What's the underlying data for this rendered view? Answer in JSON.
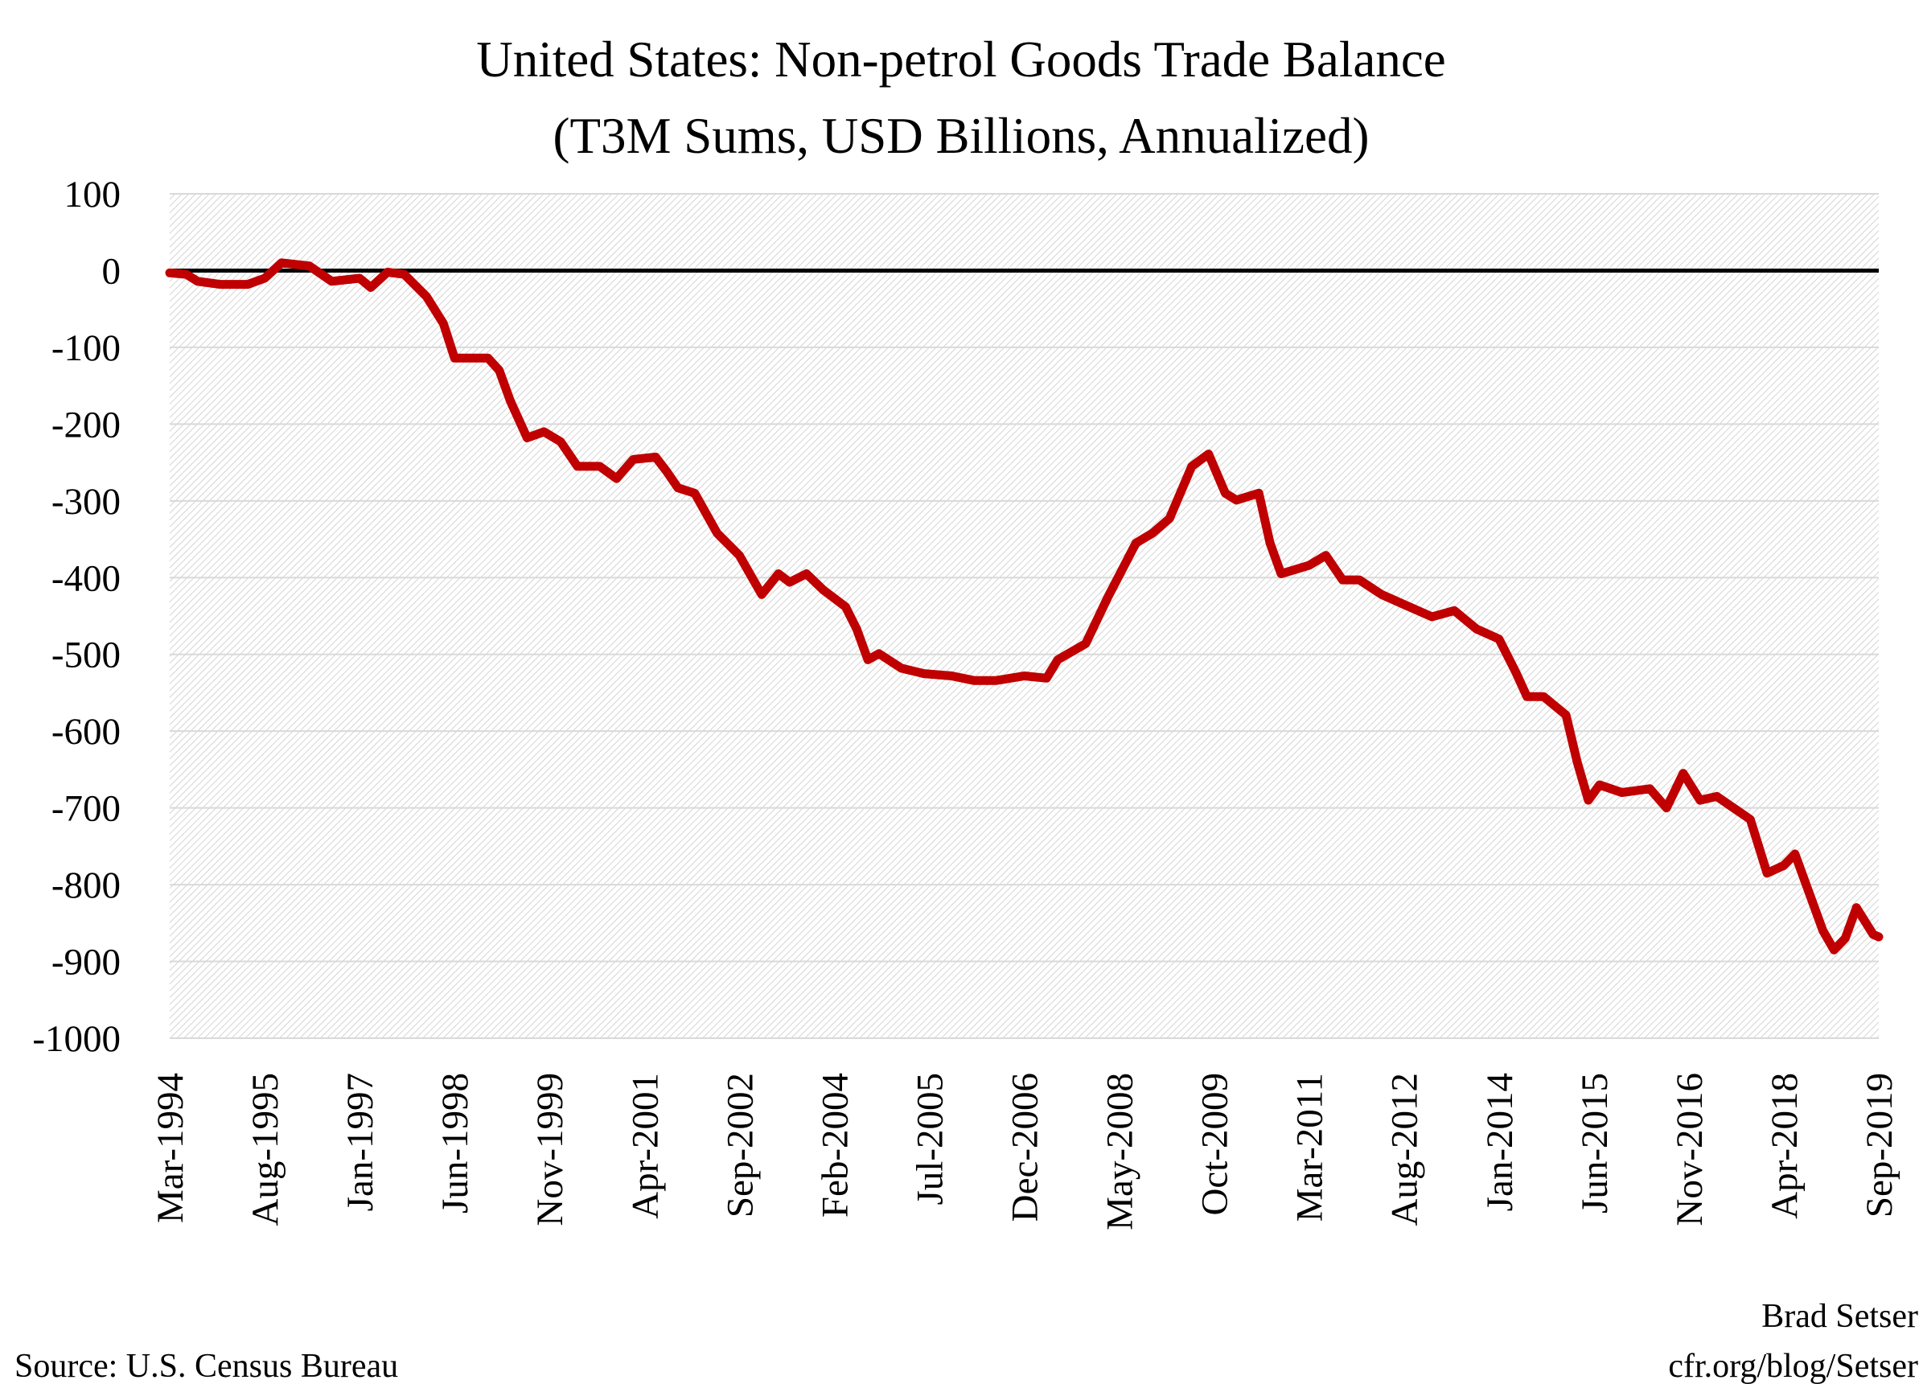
{
  "chart_data": {
    "type": "line",
    "title": "United States: Non-petrol Goods Trade Balance",
    "subtitle": "(T3M Sums, USD Billions, Annualized)",
    "xlabel": "",
    "ylabel": "",
    "ylim": [
      -1000,
      100
    ],
    "yticks": [
      "100",
      "0",
      "-100",
      "-200",
      "-300",
      "-400",
      "-500",
      "-600",
      "-700",
      "-800",
      "-900",
      "-1000"
    ],
    "xlim": [
      "1994-03",
      "2019-09"
    ],
    "xticks": [
      "Mar-1994",
      "Aug-1995",
      "Jan-1997",
      "Jun-1998",
      "Nov-1999",
      "Apr-2001",
      "Sep-2002",
      "Feb-2004",
      "Jul-2005",
      "Dec-2006",
      "May-2008",
      "Oct-2009",
      "Mar-2011",
      "Aug-2012",
      "Jan-2014",
      "Jun-2015",
      "Nov-2016",
      "Apr-2018",
      "Sep-2019"
    ],
    "grid": true,
    "zero_line": true,
    "legend": "none",
    "series": [
      {
        "color": "#c00000",
        "points": [
          [
            "1994-03",
            -3
          ],
          [
            "1994-06",
            -5
          ],
          [
            "1994-08",
            -14
          ],
          [
            "1994-12",
            -18
          ],
          [
            "1995-05",
            -18
          ],
          [
            "1995-08",
            -10
          ],
          [
            "1995-11",
            10
          ],
          [
            "1996-04",
            6
          ],
          [
            "1996-08",
            -14
          ],
          [
            "1997-01",
            -10
          ],
          [
            "1997-03",
            -22
          ],
          [
            "1997-06",
            -2
          ],
          [
            "1997-09",
            -5
          ],
          [
            "1998-01",
            -34
          ],
          [
            "1998-04",
            -69
          ],
          [
            "1998-06",
            -114
          ],
          [
            "1998-08",
            -114
          ],
          [
            "1998-12",
            -114
          ],
          [
            "1999-02",
            -130
          ],
          [
            "1999-04",
            -170
          ],
          [
            "1999-07",
            -218
          ],
          [
            "1999-10",
            -210
          ],
          [
            "2000-01",
            -223
          ],
          [
            "2000-04",
            -255
          ],
          [
            "2000-08",
            -255
          ],
          [
            "2000-11",
            -271
          ],
          [
            "2001-02",
            -246
          ],
          [
            "2001-06",
            -243
          ],
          [
            "2001-08",
            -262
          ],
          [
            "2001-10",
            -283
          ],
          [
            "2002-01",
            -290
          ],
          [
            "2002-05",
            -342
          ],
          [
            "2002-09",
            -371
          ],
          [
            "2003-01",
            -422
          ],
          [
            "2003-04",
            -395
          ],
          [
            "2003-06",
            -406
          ],
          [
            "2003-09",
            -395
          ],
          [
            "2003-12",
            -416
          ],
          [
            "2004-04",
            -438
          ],
          [
            "2004-06",
            -467
          ],
          [
            "2004-08",
            -507
          ],
          [
            "2004-10",
            -499
          ],
          [
            "2005-02",
            -518
          ],
          [
            "2005-06",
            -525
          ],
          [
            "2005-11",
            -528
          ],
          [
            "2006-03",
            -534
          ],
          [
            "2006-07",
            -534
          ],
          [
            "2006-12",
            -528
          ],
          [
            "2007-04",
            -531
          ],
          [
            "2007-06",
            -507
          ],
          [
            "2007-11",
            -486
          ],
          [
            "2008-03",
            -425
          ],
          [
            "2008-08",
            -355
          ],
          [
            "2008-11",
            -342
          ],
          [
            "2009-02",
            -323
          ],
          [
            "2009-06",
            -255
          ],
          [
            "2009-09",
            -239
          ],
          [
            "2009-12",
            -290
          ],
          [
            "2010-02",
            -299
          ],
          [
            "2010-06",
            -290
          ],
          [
            "2010-08",
            -355
          ],
          [
            "2010-10",
            -395
          ],
          [
            "2011-03",
            -384
          ],
          [
            "2011-06",
            -371
          ],
          [
            "2011-09",
            -403
          ],
          [
            "2011-12",
            -403
          ],
          [
            "2012-04",
            -422
          ],
          [
            "2012-08",
            -435
          ],
          [
            "2013-01",
            -451
          ],
          [
            "2013-05",
            -443
          ],
          [
            "2013-09",
            -467
          ],
          [
            "2014-01",
            -480
          ],
          [
            "2014-04",
            -523
          ],
          [
            "2014-06",
            -555
          ],
          [
            "2014-09",
            -555
          ],
          [
            "2015-01",
            -579
          ],
          [
            "2015-03",
            -640
          ],
          [
            "2015-05",
            -690
          ],
          [
            "2015-07",
            -670
          ],
          [
            "2015-11",
            -680
          ],
          [
            "2016-04",
            -675
          ],
          [
            "2016-07",
            -700
          ],
          [
            "2016-10",
            -655
          ],
          [
            "2017-01",
            -690
          ],
          [
            "2017-04",
            -685
          ],
          [
            "2017-10",
            -715
          ],
          [
            "2018-01",
            -785
          ],
          [
            "2018-04",
            -775
          ],
          [
            "2018-06",
            -760
          ],
          [
            "2018-09",
            -820
          ],
          [
            "2018-11",
            -860
          ],
          [
            "2019-01",
            -885
          ],
          [
            "2019-03",
            -870
          ],
          [
            "2019-05",
            -830
          ],
          [
            "2019-08",
            -865
          ],
          [
            "2019-09",
            -868
          ]
        ]
      }
    ]
  },
  "footer": {
    "source": "Source: U.S. Census Bureau",
    "author": "Brad Setser",
    "url": "cfr.org/blog/Setser"
  }
}
